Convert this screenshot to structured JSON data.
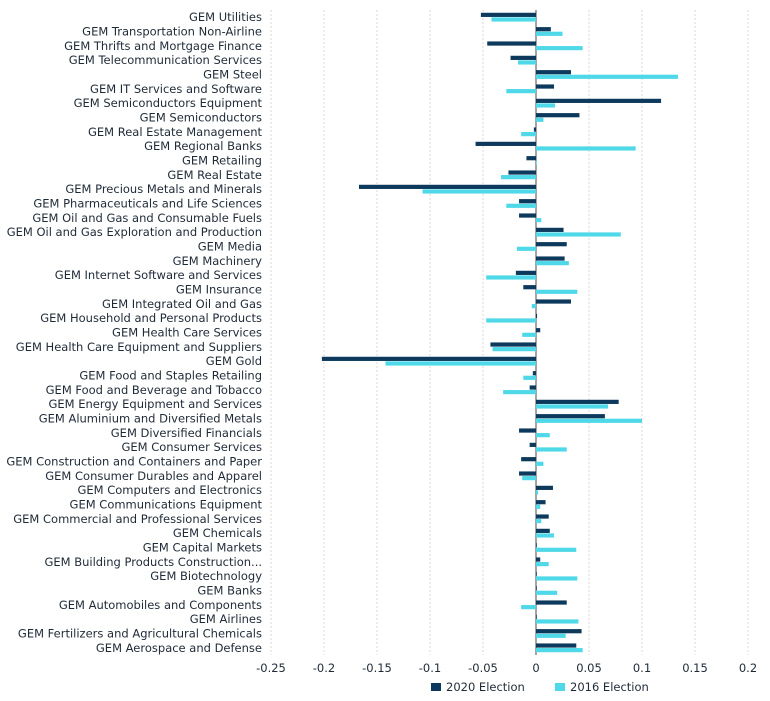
{
  "chart_data": {
    "type": "bar",
    "orientation": "horizontal",
    "categories": [
      "GEM Utilities",
      "GEM Transportation Non-Airline",
      "GEM Thrifts and Mortgage Finance",
      "GEM Telecommunication Services",
      "GEM Steel",
      "GEM IT Services and Software",
      "GEM Semiconductors Equipment",
      "GEM Semiconductors",
      "GEM Real Estate Management",
      "GEM Regional Banks",
      "GEM Retailing",
      "GEM Real Estate",
      "GEM Precious Metals and Minerals",
      "GEM Pharmaceuticals and Life Sciences",
      "GEM Oil and Gas and Consumable Fuels",
      "GEM Oil and Gas Exploration and Production",
      "GEM Media",
      "GEM Machinery",
      "GEM Internet Software and Services",
      "GEM Insurance",
      "GEM Integrated Oil and Gas",
      "GEM Household and Personal Products",
      "GEM Health Care Services",
      "GEM Health Care Equipment and Suppliers",
      "GEM Gold",
      "GEM Food and Staples Retailing",
      "GEM Food and Beverage and Tobacco",
      "GEM Energy Equipment and Services",
      "GEM Aluminium and Diversified Metals",
      "GEM Diversified Financials",
      "GEM Consumer Services",
      "GEM Construction and Containers and Paper",
      "GEM Consumer Durables and Apparel",
      "GEM Computers and Electronics",
      "GEM Communications Equipment",
      "GEM Commercial and Professional Services",
      "GEM Chemicals",
      "GEM Capital Markets",
      "GEM Building Products Construction...",
      "GEM Biotechnology",
      "GEM Banks",
      "GEM Automobiles and Components",
      "GEM Airlines",
      "GEM Fertilizers and Agricultural Chemicals",
      "GEM Aerospace and Defense"
    ],
    "series": [
      {
        "name": "2020 Election",
        "color": "#0d3a5c",
        "values": [
          -0.052,
          0.014,
          -0.046,
          -0.024,
          0.033,
          0.017,
          0.118,
          0.041,
          -0.002,
          -0.057,
          -0.009,
          -0.026,
          -0.167,
          -0.016,
          -0.016,
          0.026,
          0.029,
          0.027,
          -0.019,
          -0.012,
          0.033,
          0.001,
          0.004,
          -0.043,
          -0.202,
          -0.003,
          -0.006,
          0.078,
          0.065,
          -0.016,
          -0.006,
          -0.014,
          -0.016,
          0.016,
          0.009,
          0.012,
          0.013,
          0.0,
          0.004,
          0.0,
          0.0,
          0.029,
          0.0,
          0.043,
          0.038
        ]
      },
      {
        "name": "2016 Election",
        "color": "#4fd9e8",
        "values": [
          -0.042,
          0.025,
          0.044,
          -0.017,
          0.134,
          -0.028,
          0.018,
          0.007,
          -0.014,
          0.094,
          0.0,
          -0.033,
          -0.107,
          -0.028,
          0.005,
          0.08,
          -0.018,
          0.031,
          -0.047,
          0.039,
          -0.004,
          -0.047,
          -0.013,
          -0.041,
          -0.142,
          -0.012,
          -0.031,
          0.068,
          0.1,
          0.013,
          0.029,
          0.007,
          -0.013,
          0.002,
          0.004,
          0.005,
          0.017,
          0.038,
          0.012,
          0.039,
          0.02,
          -0.014,
          0.04,
          0.028,
          0.044
        ]
      }
    ],
    "xlim": [
      -0.25,
      0.2
    ],
    "xticks": [
      "-0.25",
      "-0.2",
      "-0.15",
      "-0.1",
      "-0.05",
      "0",
      "0.05",
      "0.1",
      "0.15",
      "0.2"
    ],
    "xtick_values": [
      -0.25,
      -0.2,
      -0.15,
      -0.1,
      -0.05,
      0,
      0.05,
      0.1,
      0.15,
      0.2
    ],
    "grid": "vertical",
    "legend_position": "bottom"
  }
}
